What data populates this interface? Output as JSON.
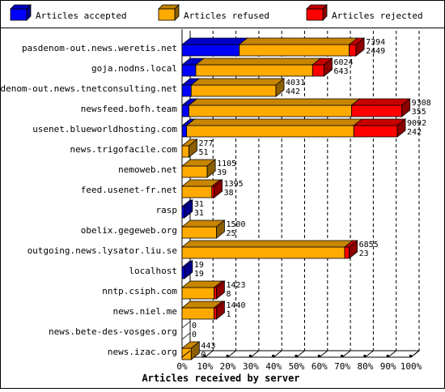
{
  "chart_data": {
    "type": "bar",
    "orientation": "horizontal",
    "stacked": true,
    "style": "3d",
    "xlabel": "Articles received by server",
    "xlim": [
      0,
      100
    ],
    "x_ticks": [
      "0%",
      "10%",
      "20%",
      "30%",
      "40%",
      "50%",
      "60%",
      "70%",
      "80%",
      "90%",
      "100%"
    ],
    "grid": true,
    "legend_position": "top",
    "colors": {
      "accepted": "#0000ff",
      "refused": "#ffaa00",
      "rejected": "#ff0000"
    },
    "series": [
      {
        "name": "Articles accepted",
        "key": "accepted"
      },
      {
        "name": "Articles refused",
        "key": "refused"
      },
      {
        "name": "Articles rejected",
        "key": "rejected"
      }
    ],
    "categories": [
      "pasdenom-out.news.weretis.net",
      "goja.nodns.local",
      "pasdenom-out.news.tnetconsulting.net",
      "newsfeed.bofh.team",
      "usenet.blueworldhosting.com",
      "news.trigofacile.com",
      "nemoweb.net",
      "feed.usenet-fr.net",
      "rasp",
      "obelix.gegeweb.org",
      "outgoing.news.lysator.liu.se",
      "localhost",
      "nntp.csiph.com",
      "news.niel.me",
      "news.bete-des-vosges.org",
      "news.izac.org"
    ],
    "rows": [
      {
        "total": "7394",
        "accepted_count": "2449",
        "accepted_pct": 25,
        "refused_pct": 48,
        "rejected_pct": 3
      },
      {
        "total": "6024",
        "accepted_count": "643",
        "accepted_pct": 6,
        "refused_pct": 51,
        "rejected_pct": 5
      },
      {
        "total": "4031",
        "accepted_count": "442",
        "accepted_pct": 4,
        "refused_pct": 37,
        "rejected_pct": 0
      },
      {
        "total": "9308",
        "accepted_count": "355",
        "accepted_pct": 3,
        "refused_pct": 71,
        "rejected_pct": 22
      },
      {
        "total": "9092",
        "accepted_count": "242",
        "accepted_pct": 2,
        "refused_pct": 73,
        "rejected_pct": 19
      },
      {
        "total": "277",
        "accepted_count": "51",
        "accepted_pct": 0,
        "refused_pct": 3,
        "rejected_pct": 0
      },
      {
        "total": "1105",
        "accepted_count": "39",
        "accepted_pct": 0,
        "refused_pct": 11,
        "rejected_pct": 0
      },
      {
        "total": "1395",
        "accepted_count": "38",
        "accepted_pct": 0,
        "refused_pct": 13,
        "rejected_pct": 1
      },
      {
        "total": "31",
        "accepted_count": "31",
        "accepted_pct": 1,
        "refused_pct": 0,
        "rejected_pct": 0
      },
      {
        "total": "1500",
        "accepted_count": "25",
        "accepted_pct": 0,
        "refused_pct": 15,
        "rejected_pct": 0
      },
      {
        "total": "6855",
        "accepted_count": "23",
        "accepted_pct": 0,
        "refused_pct": 71,
        "rejected_pct": 2
      },
      {
        "total": "19",
        "accepted_count": "19",
        "accepted_pct": 1,
        "refused_pct": 0,
        "rejected_pct": 0
      },
      {
        "total": "1423",
        "accepted_count": "8",
        "accepted_pct": 0,
        "refused_pct": 14,
        "rejected_pct": 1
      },
      {
        "total": "1440",
        "accepted_count": "1",
        "accepted_pct": 0,
        "refused_pct": 14,
        "rejected_pct": 1
      },
      {
        "total": "0",
        "accepted_count": "0",
        "accepted_pct": 0,
        "refused_pct": 0,
        "rejected_pct": 0
      },
      {
        "total": "443",
        "accepted_count": "0",
        "accepted_pct": 0,
        "refused_pct": 4,
        "rejected_pct": 0
      }
    ]
  }
}
